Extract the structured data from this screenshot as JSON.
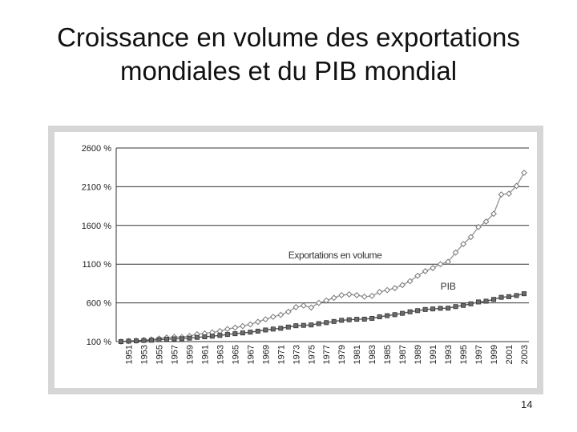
{
  "slide": {
    "title_line1": "Croissance en volume des exportations",
    "title_line2": "mondiales et du PIB mondial",
    "page_number": "14"
  },
  "chart_data": {
    "type": "line",
    "title": "",
    "xlabel": "",
    "ylabel": "",
    "ylim": [
      100,
      2600
    ],
    "yticks": [
      100,
      600,
      1100,
      1600,
      2100,
      2600
    ],
    "ytick_labels": [
      "100 %",
      "600 %",
      "1100 %",
      "1600 %",
      "2100 %",
      "2600 %"
    ],
    "xtick_labels": [
      "1951",
      "1953",
      "1955",
      "1957",
      "1959",
      "1961",
      "1963",
      "1965",
      "1967",
      "1969",
      "1971",
      "1973",
      "1975",
      "1977",
      "1979",
      "1981",
      "1983",
      "1985",
      "1987",
      "1989",
      "1991",
      "1993",
      "1995",
      "1997",
      "1999",
      "2001",
      "2003"
    ],
    "grid": "horizontal",
    "legend": "inline labels",
    "x": [
      1950,
      1951,
      1952,
      1953,
      1954,
      1955,
      1956,
      1957,
      1958,
      1959,
      1960,
      1961,
      1962,
      1963,
      1964,
      1965,
      1966,
      1967,
      1968,
      1969,
      1970,
      1971,
      1972,
      1973,
      1974,
      1975,
      1976,
      1977,
      1978,
      1979,
      1980,
      1981,
      1982,
      1983,
      1984,
      1985,
      1986,
      1987,
      1988,
      1989,
      1990,
      1991,
      1992,
      1993,
      1994,
      1995,
      1996,
      1997,
      1998,
      1999,
      2000,
      2001,
      2002,
      2003
    ],
    "series": [
      {
        "name": "Exportations en volume",
        "color": "#999999",
        "marker": "diamond-open",
        "values": [
          100,
          108,
          112,
          120,
          128,
          140,
          152,
          160,
          158,
          172,
          195,
          205,
          218,
          235,
          262,
          280,
          300,
          322,
          355,
          388,
          420,
          445,
          485,
          545,
          565,
          540,
          600,
          630,
          665,
          700,
          710,
          700,
          680,
          690,
          740,
          765,
          790,
          830,
          880,
          950,
          1010,
          1050,
          1100,
          1130,
          1250,
          1360,
          1450,
          1580,
          1650,
          1750,
          2000,
          2010,
          2110,
          2280
        ]
      },
      {
        "name": "PIB",
        "color": "#555555",
        "marker": "square-filled",
        "values": [
          100,
          106,
          110,
          115,
          118,
          125,
          130,
          136,
          138,
          145,
          155,
          162,
          170,
          180,
          192,
          202,
          212,
          222,
          235,
          250,
          262,
          272,
          288,
          305,
          310,
          315,
          332,
          345,
          360,
          375,
          382,
          388,
          390,
          400,
          420,
          435,
          448,
          465,
          485,
          500,
          515,
          522,
          530,
          532,
          552,
          568,
          588,
          612,
          622,
          645,
          672,
          680,
          695,
          718
        ]
      }
    ]
  }
}
